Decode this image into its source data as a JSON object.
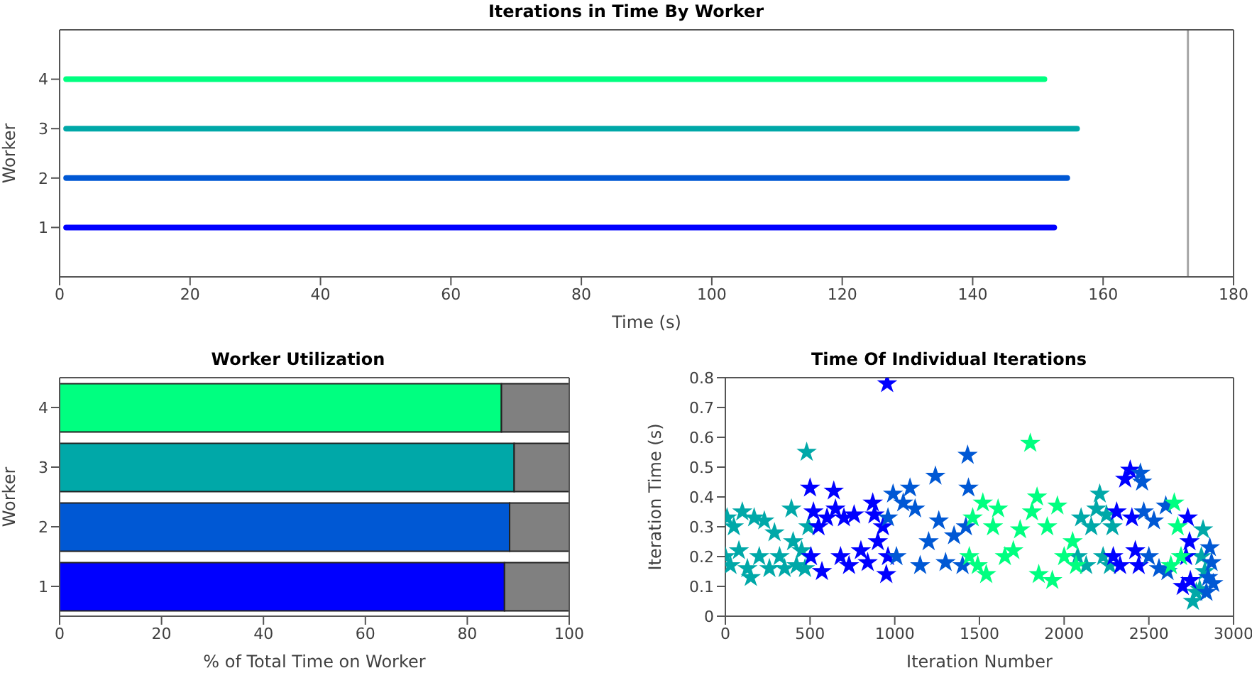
{
  "chart_data": [
    {
      "type": "line",
      "title": "Iterations in Time By Worker",
      "xlabel": "Time (s)",
      "ylabel": "Worker",
      "xlim": [
        0,
        180
      ],
      "xticks": [
        0,
        20,
        40,
        60,
        80,
        100,
        120,
        140,
        160,
        180
      ],
      "ylim": [
        0,
        5
      ],
      "yticks": [
        1,
        2,
        3,
        4
      ],
      "series": [
        {
          "color": "#0000ff",
          "x": [
            1,
            152.5
          ],
          "values": [
            1,
            1
          ]
        },
        {
          "color": "#0058d4",
          "x": [
            1,
            154.5
          ],
          "values": [
            2,
            2
          ]
        },
        {
          "color": "#00a8a8",
          "x": [
            1,
            156
          ],
          "values": [
            3,
            3
          ]
        },
        {
          "color": "#00ff80",
          "x": [
            1,
            151
          ],
          "values": [
            4,
            4
          ]
        }
      ],
      "ref_lines": [
        {
          "axis": "x",
          "value": 173,
          "color": "#a6a6a6"
        }
      ]
    },
    {
      "type": "bar",
      "title": "Worker Utilization",
      "xlabel": "% of Total Time on Worker",
      "ylabel": "Worker",
      "orientation": "horizontal",
      "stacked": true,
      "categories": [
        "4",
        "3",
        "2",
        "1"
      ],
      "xlim": [
        0,
        100
      ],
      "xticks": [
        0,
        20,
        40,
        60,
        80,
        100
      ],
      "series": [
        {
          "colors": [
            "#00ff80",
            "#00a8a8",
            "#0058d4",
            "#0000ff"
          ],
          "values": [
            86.7,
            89.2,
            88.3,
            87.3
          ]
        },
        {
          "color": "#808080",
          "values": [
            13.3,
            10.8,
            11.7,
            12.7
          ]
        }
      ]
    },
    {
      "type": "scatter",
      "title": "Time Of Individual Iterations",
      "xlabel": "Iteration Number",
      "ylabel": "Iteration Time (s)",
      "marker": "star",
      "xlim": [
        0,
        3000
      ],
      "xticks": [
        0,
        500,
        1000,
        1500,
        2000,
        2500,
        3000
      ],
      "ylim": [
        0,
        0.8
      ],
      "yticks": [
        0,
        0.1,
        0.2,
        0.3,
        0.4,
        0.5,
        0.6,
        0.7,
        0.8
      ],
      "series": [
        {
          "color": "#00a8a8",
          "x": [
            0,
            10,
            30,
            50,
            80,
            100,
            130,
            150,
            170,
            200,
            230,
            260,
            290,
            320,
            350,
            390,
            400,
            420,
            450,
            470,
            480,
            490,
            2080,
            2100,
            2130,
            2160,
            2190,
            2210,
            2230,
            2250,
            2270,
            2285,
            2760,
            2780,
            2800,
            2810,
            2820,
            2830
          ],
          "values": [
            0.2,
            0.33,
            0.17,
            0.3,
            0.22,
            0.35,
            0.16,
            0.13,
            0.33,
            0.2,
            0.32,
            0.16,
            0.28,
            0.2,
            0.16,
            0.36,
            0.25,
            0.17,
            0.22,
            0.16,
            0.55,
            0.3,
            0.2,
            0.33,
            0.17,
            0.3,
            0.36,
            0.41,
            0.2,
            0.34,
            0.17,
            0.3,
            0.05,
            0.08,
            0.09,
            0.2,
            0.29,
            0.15
          ]
        },
        {
          "color": "#0000ff",
          "x": [
            500,
            505,
            520,
            550,
            570,
            600,
            640,
            650,
            680,
            700,
            730,
            760,
            800,
            840,
            870,
            880,
            900,
            930,
            950,
            955,
            960,
            2290,
            2310,
            2330,
            2360,
            2390,
            2400,
            2420,
            2440,
            2700,
            2720,
            2730,
            2740,
            2745
          ],
          "values": [
            0.43,
            0.2,
            0.35,
            0.3,
            0.15,
            0.33,
            0.42,
            0.36,
            0.2,
            0.33,
            0.17,
            0.34,
            0.22,
            0.18,
            0.38,
            0.34,
            0.25,
            0.3,
            0.14,
            0.78,
            0.2,
            0.2,
            0.35,
            0.17,
            0.46,
            0.49,
            0.33,
            0.22,
            0.17,
            0.1,
            0.2,
            0.33,
            0.25,
            0.12
          ]
        },
        {
          "color": "#0058d4",
          "x": [
            960,
            990,
            1010,
            1050,
            1090,
            1120,
            1150,
            1200,
            1240,
            1260,
            1300,
            1350,
            1400,
            1420,
            1430,
            1435,
            2450,
            2460,
            2470,
            2500,
            2530,
            2560,
            2600,
            2610,
            2840,
            2850,
            2860,
            2870,
            2880
          ],
          "values": [
            0.33,
            0.41,
            0.2,
            0.38,
            0.43,
            0.36,
            0.17,
            0.25,
            0.47,
            0.32,
            0.18,
            0.27,
            0.17,
            0.3,
            0.54,
            0.43,
            0.48,
            0.45,
            0.35,
            0.2,
            0.32,
            0.16,
            0.37,
            0.15,
            0.08,
            0.13,
            0.23,
            0.18,
            0.11
          ]
        },
        {
          "color": "#00ff80",
          "x": [
            1440,
            1460,
            1490,
            1520,
            1540,
            1580,
            1610,
            1650,
            1700,
            1740,
            1800,
            1810,
            1840,
            1850,
            1900,
            1930,
            1960,
            2000,
            2050,
            2070,
            2630,
            2650,
            2670,
            2690
          ],
          "values": [
            0.2,
            0.33,
            0.17,
            0.38,
            0.14,
            0.3,
            0.36,
            0.2,
            0.22,
            0.29,
            0.58,
            0.35,
            0.4,
            0.14,
            0.3,
            0.12,
            0.37,
            0.2,
            0.25,
            0.17,
            0.17,
            0.38,
            0.3,
            0.2
          ]
        }
      ]
    }
  ]
}
